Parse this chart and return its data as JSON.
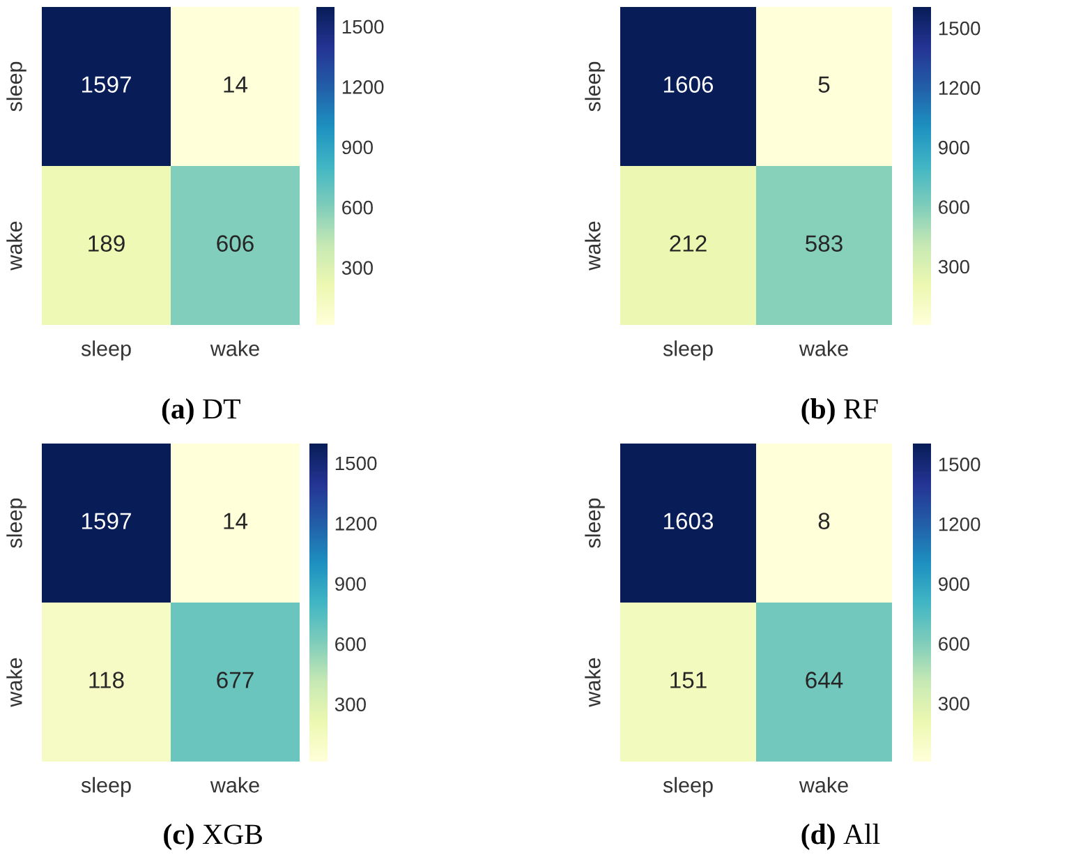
{
  "chart_data": [
    {
      "type": "heatmap",
      "title": "(a) DT",
      "categories": [
        "sleep",
        "wake"
      ],
      "y_categories": [
        "sleep",
        "wake"
      ],
      "cells": [
        [
          1597,
          14
        ],
        [
          189,
          606
        ]
      ],
      "data_labels": true,
      "clim": [
        14,
        1597
      ],
      "cticks": [
        300,
        600,
        900,
        1200,
        1500
      ]
    },
    {
      "type": "heatmap",
      "title": "(b) RF",
      "categories": [
        "sleep",
        "wake"
      ],
      "y_categories": [
        "sleep",
        "wake"
      ],
      "cells": [
        [
          1606,
          5
        ],
        [
          212,
          583
        ]
      ],
      "data_labels": true,
      "clim": [
        5,
        1606
      ],
      "cticks": [
        300,
        600,
        900,
        1200,
        1500
      ]
    },
    {
      "type": "heatmap",
      "title": "(c) XGB",
      "categories": [
        "sleep",
        "wake"
      ],
      "y_categories": [
        "sleep",
        "wake"
      ],
      "cells": [
        [
          1597,
          14
        ],
        [
          118,
          677
        ]
      ],
      "data_labels": true,
      "clim": [
        14,
        1597
      ],
      "cticks": [
        300,
        600,
        900,
        1200,
        1500
      ]
    },
    {
      "type": "heatmap",
      "title": "(d) All",
      "categories": [
        "sleep",
        "wake"
      ],
      "y_categories": [
        "sleep",
        "wake"
      ],
      "cells": [
        [
          1603,
          8
        ],
        [
          151,
          644
        ]
      ],
      "data_labels": true,
      "clim": [
        8,
        1603
      ],
      "cticks": [
        300,
        600,
        900,
        1200,
        1500
      ]
    }
  ]
}
